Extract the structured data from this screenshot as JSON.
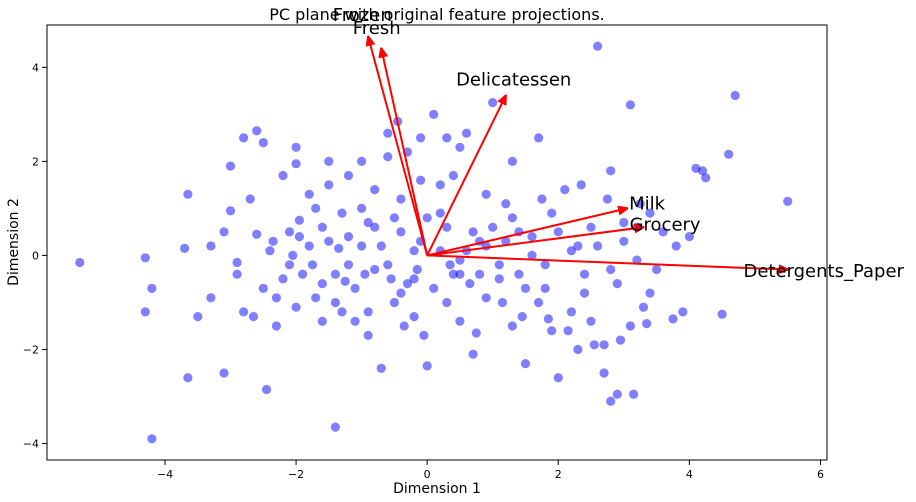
{
  "chart_data": {
    "type": "scatter",
    "title": "PC plane with original feature projections.",
    "xlabel": "Dimension 1",
    "ylabel": "Dimension 2",
    "xlim": [
      -5.8,
      6.1
    ],
    "ylim": [
      -4.35,
      4.9
    ],
    "xticks": [
      -4,
      -2,
      0,
      2,
      4,
      6
    ],
    "yticks": [
      -4,
      -2,
      0,
      2,
      4
    ],
    "grid": false,
    "point_color": "#0000ff",
    "arrow_color": "#ff0000",
    "points": [
      [
        -5.3,
        -0.15
      ],
      [
        -4.2,
        -3.9
      ],
      [
        -4.3,
        -1.2
      ],
      [
        -4.2,
        -0.7
      ],
      [
        -4.3,
        -0.05
      ],
      [
        -3.7,
        0.15
      ],
      [
        -3.65,
        -2.6
      ],
      [
        -3.65,
        1.3
      ],
      [
        -3.3,
        0.2
      ],
      [
        -3.0,
        0.95
      ],
      [
        -3.1,
        -2.5
      ],
      [
        -3.0,
        1.9
      ],
      [
        -2.8,
        2.5
      ],
      [
        -2.6,
        2.65
      ],
      [
        -2.5,
        2.4
      ],
      [
        -2.45,
        -2.85
      ],
      [
        -2.6,
        0.45
      ],
      [
        -2.65,
        -1.3
      ],
      [
        -2.8,
        -1.2
      ],
      [
        -2.9,
        -0.4
      ],
      [
        -2.0,
        1.95
      ],
      [
        -1.95,
        0.75
      ],
      [
        -1.7,
        1.0
      ],
      [
        -1.6,
        -0.6
      ],
      [
        -1.5,
        0.3
      ],
      [
        -1.4,
        -3.65
      ],
      [
        -1.3,
        -1.2
      ],
      [
        -1.2,
        0.4
      ],
      [
        -1.1,
        -1.4
      ],
      [
        -1.0,
        1.0
      ],
      [
        -0.9,
        0.7
      ],
      [
        -0.8,
        -0.3
      ],
      [
        -0.7,
        -2.4
      ],
      [
        -0.6,
        2.6
      ],
      [
        -0.5,
        -1.0
      ],
      [
        -0.4,
        0.5
      ],
      [
        -0.3,
        2.2
      ],
      [
        -0.2,
        -0.5
      ],
      [
        -0.1,
        1.6
      ],
      [
        0.0,
        -2.35
      ],
      [
        0.1,
        3.0
      ],
      [
        0.2,
        0.9
      ],
      [
        0.3,
        -1.0
      ],
      [
        0.4,
        1.7
      ],
      [
        0.5,
        -0.4
      ],
      [
        0.6,
        2.6
      ],
      [
        0.7,
        -2.1
      ],
      [
        0.8,
        0.3
      ],
      [
        0.9,
        -0.9
      ],
      [
        1.0,
        3.25
      ],
      [
        1.1,
        -0.2
      ],
      [
        1.2,
        1.1
      ],
      [
        1.3,
        -1.5
      ],
      [
        1.4,
        0.5
      ],
      [
        1.5,
        -2.3
      ],
      [
        1.6,
        0.0
      ],
      [
        1.7,
        2.5
      ],
      [
        1.8,
        -0.7
      ],
      [
        1.9,
        0.9
      ],
      [
        2.0,
        -2.6
      ],
      [
        2.1,
        1.4
      ],
      [
        2.2,
        -1.2
      ],
      [
        2.3,
        0.2
      ],
      [
        2.4,
        -0.8
      ],
      [
        2.5,
        0.6
      ],
      [
        2.6,
        4.45
      ],
      [
        2.7,
        -2.5
      ],
      [
        2.8,
        1.8
      ],
      [
        2.9,
        -0.6
      ],
      [
        3.0,
        0.7
      ],
      [
        3.1,
        3.2
      ],
      [
        3.2,
        -0.1
      ],
      [
        3.3,
        -1.1
      ],
      [
        3.4,
        0.9
      ],
      [
        3.5,
        -0.3
      ],
      [
        3.6,
        0.5
      ],
      [
        3.8,
        0.2
      ],
      [
        3.9,
        -1.2
      ],
      [
        4.0,
        0.4
      ],
      [
        4.1,
        1.85
      ],
      [
        4.2,
        1.8
      ],
      [
        4.25,
        1.65
      ],
      [
        4.5,
        -1.25
      ],
      [
        4.6,
        2.15
      ],
      [
        4.7,
        3.4
      ],
      [
        5.5,
        1.15
      ],
      [
        3.15,
        -2.95
      ],
      [
        2.9,
        -2.95
      ],
      [
        2.8,
        -3.1
      ],
      [
        3.4,
        -0.8
      ],
      [
        -2.2,
        -0.5
      ],
      [
        -2.0,
        -1.1
      ],
      [
        -1.8,
        0.2
      ],
      [
        -1.7,
        -0.9
      ],
      [
        -1.5,
        1.5
      ],
      [
        -1.3,
        0.9
      ],
      [
        -1.1,
        -0.7
      ],
      [
        -0.9,
        -1.2
      ],
      [
        -0.7,
        0.2
      ],
      [
        -0.5,
        0.8
      ],
      [
        -0.3,
        -0.6
      ],
      [
        -0.1,
        0.3
      ],
      [
        0.1,
        -0.7
      ],
      [
        0.3,
        0.6
      ],
      [
        0.5,
        -0.1
      ],
      [
        0.7,
        0.5
      ],
      [
        0.9,
        0.2
      ],
      [
        1.1,
        -0.5
      ],
      [
        1.3,
        0.8
      ],
      [
        1.5,
        -0.7
      ],
      [
        -2.4,
        0.1
      ],
      [
        -2.3,
        -0.9
      ],
      [
        -2.1,
        0.5
      ],
      [
        -1.9,
        -0.4
      ],
      [
        -1.6,
        0.6
      ],
      [
        -1.4,
        -0.4
      ],
      [
        -1.2,
        -0.2
      ],
      [
        -1.0,
        0.2
      ],
      [
        -0.8,
        0.6
      ],
      [
        -0.6,
        -0.2
      ],
      [
        -0.4,
        -0.8
      ],
      [
        -0.2,
        0.1
      ],
      [
        0.0,
        0.8
      ],
      [
        0.2,
        0.1
      ],
      [
        0.4,
        -0.4
      ],
      [
        0.6,
        0.1
      ],
      [
        0.8,
        -0.4
      ],
      [
        1.0,
        0.6
      ],
      [
        1.2,
        0.3
      ],
      [
        1.4,
        -0.4
      ],
      [
        1.6,
        0.4
      ],
      [
        1.8,
        -0.2
      ],
      [
        2.0,
        0.5
      ],
      [
        2.2,
        0.1
      ],
      [
        2.4,
        -0.4
      ],
      [
        2.6,
        0.2
      ],
      [
        2.8,
        -0.3
      ],
      [
        3.0,
        0.3
      ],
      [
        3.2,
        0.6
      ],
      [
        1.9,
        -1.6
      ],
      [
        2.3,
        -2.0
      ],
      [
        2.5,
        -1.4
      ],
      [
        2.7,
        -1.9
      ],
      [
        3.1,
        -1.5
      ],
      [
        1.7,
        -1.0
      ],
      [
        0.5,
        -1.4
      ],
      [
        -0.2,
        -1.3
      ],
      [
        -0.9,
        -1.7
      ],
      [
        -1.6,
        -1.4
      ],
      [
        -2.3,
        -1.5
      ],
      [
        -3.3,
        -0.9
      ],
      [
        -3.1,
        0.5
      ],
      [
        -3.5,
        -1.3
      ],
      [
        -2.7,
        1.2
      ],
      [
        -2.2,
        1.7
      ],
      [
        -1.8,
        1.3
      ],
      [
        -1.2,
        1.7
      ],
      [
        -0.8,
        1.4
      ],
      [
        -0.4,
        1.2
      ],
      [
        0.2,
        1.5
      ],
      [
        0.5,
        2.3
      ],
      [
        -0.1,
        2.5
      ],
      [
        -0.45,
        2.85
      ],
      [
        -0.6,
        2.1
      ],
      [
        -1.0,
        2.0
      ],
      [
        -1.5,
        2.0
      ],
      [
        -2.0,
        2.3
      ],
      [
        1.3,
        2.0
      ],
      [
        0.9,
        1.3
      ],
      [
        0.3,
        2.5
      ],
      [
        -2.5,
        -0.7
      ],
      [
        -2.9,
        -0.15
      ],
      [
        -2.1,
        -0.2
      ],
      [
        -1.75,
        -0.2
      ],
      [
        -1.35,
        0.15
      ],
      [
        -0.95,
        -0.4
      ],
      [
        -0.55,
        -0.5
      ],
      [
        -0.15,
        -0.3
      ],
      [
        0.35,
        -0.2
      ],
      [
        0.65,
        -0.6
      ],
      [
        1.15,
        -1.0
      ],
      [
        1.45,
        -1.3
      ],
      [
        1.85,
        -1.35
      ],
      [
        2.15,
        -1.6
      ],
      [
        2.55,
        -1.9
      ],
      [
        2.95,
        -1.8
      ],
      [
        3.35,
        -1.45
      ],
      [
        3.75,
        -1.35
      ],
      [
        1.75,
        1.2
      ],
      [
        2.35,
        1.5
      ],
      [
        2.75,
        1.2
      ],
      [
        3.25,
        1.1
      ],
      [
        -1.4,
        -1.0
      ],
      [
        -1.25,
        -0.55
      ],
      [
        -0.35,
        -1.5
      ],
      [
        -0.05,
        -1.7
      ],
      [
        0.75,
        -1.65
      ],
      [
        -2.05,
        0.0
      ],
      [
        -2.35,
        0.3
      ],
      [
        -1.95,
        0.4
      ]
    ],
    "vectors": [
      {
        "name": "Frozen",
        "x": -0.9,
        "y": 4.65
      },
      {
        "name": "Fresh",
        "x": -0.7,
        "y": 4.4
      },
      {
        "name": "Delicatessen",
        "x": 1.2,
        "y": 3.4
      },
      {
        "name": "Milk",
        "x": 3.05,
        "y": 1.0
      },
      {
        "name": "Grocery",
        "x": 3.3,
        "y": 0.6
      },
      {
        "name": "Detergents_Paper",
        "x": 5.5,
        "y": -0.3
      }
    ]
  }
}
